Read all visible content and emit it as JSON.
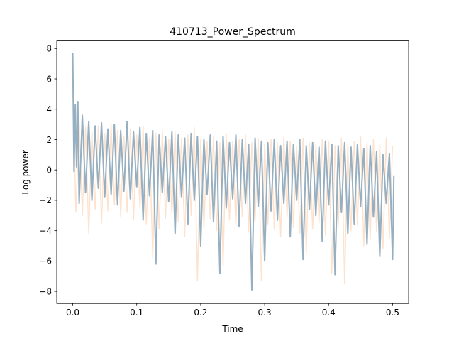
{
  "chart_data": {
    "type": "line",
    "title": "410713_Power_Spectrum",
    "xlabel": "Time",
    "ylabel": "Log power",
    "xlim": [
      -0.025,
      0.525
    ],
    "ylim": [
      -8.8,
      8.5
    ],
    "x_ticks": [
      0.0,
      0.1,
      0.2,
      0.3,
      0.4,
      0.5
    ],
    "x_tick_labels": [
      "0.0",
      "0.1",
      "0.2",
      "0.3",
      "0.4",
      "0.5"
    ],
    "y_ticks": [
      -8,
      -6,
      -4,
      -2,
      0,
      2,
      4,
      6,
      8
    ],
    "y_tick_labels": [
      "−8",
      "−6",
      "−4",
      "−2",
      "0",
      "2",
      "4",
      "6",
      "8"
    ],
    "grid": false,
    "series": [
      {
        "color": "#fde3cf",
        "x": [
          0.0,
          0.005,
          0.01,
          0.015,
          0.02,
          0.025,
          0.03,
          0.035,
          0.04,
          0.045,
          0.05,
          0.055,
          0.06,
          0.065,
          0.07,
          0.075,
          0.08,
          0.085,
          0.09,
          0.095,
          0.1,
          0.105,
          0.11,
          0.115,
          0.12,
          0.125,
          0.13,
          0.135,
          0.14,
          0.145,
          0.15,
          0.155,
          0.16,
          0.165,
          0.17,
          0.175,
          0.18,
          0.185,
          0.19,
          0.195,
          0.2,
          0.205,
          0.21,
          0.215,
          0.22,
          0.225,
          0.23,
          0.235,
          0.24,
          0.245,
          0.25,
          0.255,
          0.26,
          0.265,
          0.27,
          0.275,
          0.28,
          0.285,
          0.29,
          0.295,
          0.3,
          0.305,
          0.31,
          0.315,
          0.32,
          0.325,
          0.33,
          0.335,
          0.34,
          0.345,
          0.35,
          0.355,
          0.36,
          0.365,
          0.37,
          0.375,
          0.38,
          0.385,
          0.39,
          0.395,
          0.4,
          0.405,
          0.41,
          0.415,
          0.42,
          0.425,
          0.43,
          0.435,
          0.44,
          0.445,
          0.45,
          0.455,
          0.46,
          0.465,
          0.47,
          0.475,
          0.48,
          0.485,
          0.49,
          0.495,
          0.5
        ],
        "y": [
          5.5,
          -2.8,
          3.2,
          -3.0,
          2.8,
          -4.2,
          2.5,
          -2.6,
          2.9,
          -3.5,
          2.4,
          -2.7,
          3.0,
          -2.3,
          2.6,
          -3.1,
          2.2,
          -2.8,
          2.7,
          -3.3,
          2.3,
          -2.5,
          2.9,
          -3.6,
          2.1,
          -5.8,
          2.4,
          -3.9,
          2.6,
          -3.2,
          2.0,
          -2.9,
          2.5,
          -3.4,
          2.1,
          -4.4,
          2.3,
          -3.0,
          2.8,
          -7.3,
          2.0,
          -3.8,
          1.9,
          -3.2,
          2.2,
          -4.0,
          1.8,
          -6.3,
          2.4,
          -3.3,
          1.9,
          -3.7,
          2.0,
          -3.1,
          2.3,
          -4.1,
          1.8,
          -3.4,
          2.1,
          -7.3,
          1.7,
          -3.6,
          2.0,
          -3.9,
          1.8,
          -4.4,
          2.2,
          -3.1,
          1.9,
          -3.8,
          1.6,
          -4.2,
          2.1,
          -5.5,
          1.8,
          -3.9,
          1.7,
          -3.5,
          2.0,
          -4.3,
          1.9,
          -6.8,
          1.6,
          -3.8,
          2.1,
          -7.5,
          1.7,
          -4.0,
          1.9,
          -3.6,
          2.2,
          -5.0,
          1.8,
          -4.6,
          2.0,
          -4.1,
          1.7,
          -5.2,
          2.1,
          -4.5,
          1.6
        ]
      },
      {
        "color": "#96b0c2",
        "x": [
          0.0,
          0.002,
          0.004,
          0.006,
          0.008,
          0.01,
          0.015,
          0.02,
          0.025,
          0.03,
          0.035,
          0.04,
          0.045,
          0.05,
          0.055,
          0.06,
          0.065,
          0.07,
          0.075,
          0.08,
          0.085,
          0.09,
          0.095,
          0.1,
          0.105,
          0.11,
          0.115,
          0.12,
          0.125,
          0.13,
          0.135,
          0.14,
          0.145,
          0.15,
          0.155,
          0.16,
          0.165,
          0.17,
          0.175,
          0.18,
          0.185,
          0.19,
          0.195,
          0.2,
          0.205,
          0.21,
          0.215,
          0.22,
          0.225,
          0.23,
          0.235,
          0.24,
          0.245,
          0.25,
          0.255,
          0.26,
          0.265,
          0.27,
          0.275,
          0.28,
          0.285,
          0.29,
          0.295,
          0.3,
          0.305,
          0.31,
          0.315,
          0.32,
          0.325,
          0.33,
          0.335,
          0.34,
          0.345,
          0.35,
          0.355,
          0.36,
          0.365,
          0.37,
          0.375,
          0.38,
          0.385,
          0.39,
          0.395,
          0.4,
          0.405,
          0.41,
          0.415,
          0.42,
          0.425,
          0.43,
          0.435,
          0.44,
          0.445,
          0.45,
          0.455,
          0.46,
          0.465,
          0.47,
          0.475,
          0.48,
          0.485,
          0.49,
          0.495,
          0.5,
          0.502
        ],
        "y": [
          7.7,
          -0.1,
          4.3,
          0.2,
          4.5,
          -2.2,
          3.6,
          -1.5,
          3.2,
          -2.0,
          2.9,
          -1.2,
          3.1,
          -1.8,
          2.7,
          -1.6,
          3.0,
          -2.3,
          2.6,
          -1.4,
          3.2,
          -1.9,
          2.5,
          -1.1,
          2.8,
          -3.3,
          2.4,
          -1.7,
          2.6,
          -6.2,
          2.3,
          -1.5,
          2.2,
          -2.1,
          2.5,
          -4.2,
          2.3,
          -1.8,
          2.1,
          -3.6,
          2.4,
          -2.0,
          2.2,
          -5.0,
          2.0,
          -1.6,
          2.3,
          -3.4,
          1.9,
          -6.8,
          2.2,
          -2.5,
          1.8,
          -1.9,
          2.3,
          -3.7,
          2.0,
          -2.2,
          1.7,
          -7.9,
          2.1,
          -2.4,
          1.9,
          -6.0,
          1.8,
          -2.7,
          2.0,
          -3.3,
          1.6,
          -2.2,
          1.9,
          -4.4,
          1.7,
          -2.0,
          2.0,
          -5.9,
          1.6,
          -2.6,
          1.8,
          -3.0,
          1.5,
          -4.7,
          1.9,
          -2.3,
          1.7,
          -6.9,
          1.6,
          -2.8,
          1.8,
          -4.2,
          1.5,
          -3.6,
          1.7,
          -2.4,
          1.4,
          -4.9,
          1.6,
          -3.1,
          1.2,
          -5.7,
          1.0,
          -2.2,
          1.1,
          -5.9,
          -0.4
        ]
      }
    ]
  }
}
